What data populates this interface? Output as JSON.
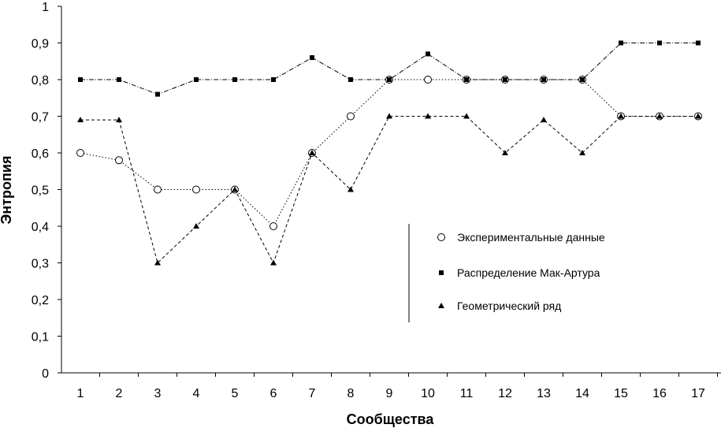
{
  "chart_data": {
    "type": "line",
    "xlabel": "Сообщества",
    "ylabel": "Энтропия",
    "categories": [
      "1",
      "2",
      "3",
      "4",
      "5",
      "6",
      "7",
      "8",
      "9",
      "10",
      "11",
      "12",
      "13",
      "14",
      "15",
      "16",
      "17"
    ],
    "ylim": [
      0,
      1
    ],
    "yticks": [
      0,
      0.1,
      0.2,
      0.3,
      0.4,
      0.5,
      0.6,
      0.7,
      0.8,
      0.9,
      1
    ],
    "ytick_labels": [
      "0",
      "0,1",
      "0,2",
      "0,3",
      "0,4",
      "0,5",
      "0,6",
      "0,7",
      "0,8",
      "0,9",
      "1"
    ],
    "grid": false,
    "legend_position": "right-center",
    "series": [
      {
        "name": "Экспериментальные данные",
        "marker": "open-circle",
        "values": [
          0.6,
          0.58,
          0.5,
          0.5,
          0.5,
          0.4,
          0.6,
          0.7,
          0.8,
          0.8,
          0.8,
          0.8,
          0.8,
          0.8,
          0.7,
          0.7,
          0.7
        ]
      },
      {
        "name": "Распределение Мак-Артура",
        "marker": "square",
        "values": [
          0.8,
          0.8,
          0.76,
          0.8,
          0.8,
          0.8,
          0.86,
          0.8,
          0.8,
          0.87,
          0.8,
          0.8,
          0.8,
          0.8,
          0.9,
          0.9,
          0.9
        ]
      },
      {
        "name": "Геометрический ряд",
        "marker": "triangle",
        "values": [
          0.69,
          0.69,
          0.3,
          0.4,
          0.5,
          0.3,
          0.6,
          0.5,
          0.7,
          0.7,
          0.7,
          0.6,
          0.69,
          0.6,
          0.7,
          0.7,
          0.7
        ]
      }
    ]
  }
}
